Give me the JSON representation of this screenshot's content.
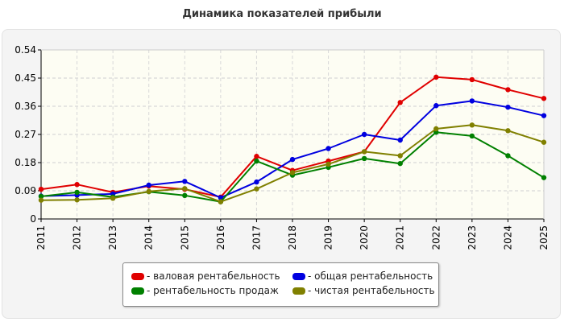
{
  "chart_data": {
    "type": "line",
    "title": "Динамика показателей прибыли",
    "xlabel": "",
    "ylabel": "",
    "x": [
      "2011",
      "2012",
      "2013",
      "2014",
      "2015",
      "2016",
      "2017",
      "2018",
      "2019",
      "2020",
      "2021",
      "2022",
      "2023",
      "2024",
      "2025"
    ],
    "yticks": [
      "0",
      "0.09",
      "0.18",
      "0.27",
      "0.36",
      "0.45",
      "0.54"
    ],
    "ylim": [
      0,
      0.54
    ],
    "grid": true,
    "legend_position": "bottom",
    "series": [
      {
        "name": "- валовая рентабельность",
        "color": "#e00000",
        "values": [
          0.095,
          0.11,
          0.085,
          0.105,
          0.095,
          0.07,
          0.2,
          0.155,
          0.185,
          0.215,
          0.372,
          0.453,
          0.445,
          0.413,
          0.385
        ]
      },
      {
        "name": "- общая рентабельность",
        "color": "#0000e0",
        "values": [
          0.073,
          0.076,
          0.08,
          0.108,
          0.12,
          0.068,
          0.118,
          0.19,
          0.225,
          0.27,
          0.252,
          0.362,
          0.377,
          0.357,
          0.33
        ]
      },
      {
        "name": "- рентабельность продаж",
        "color": "#008000",
        "values": [
          0.072,
          0.085,
          0.07,
          0.087,
          0.075,
          0.055,
          0.185,
          0.14,
          0.165,
          0.193,
          0.177,
          0.277,
          0.265,
          0.202,
          0.132
        ]
      },
      {
        "name": "- чистая рентабельность",
        "color": "#808000",
        "values": [
          0.06,
          0.061,
          0.066,
          0.088,
          0.097,
          0.055,
          0.096,
          0.148,
          0.175,
          0.215,
          0.202,
          0.288,
          0.3,
          0.282,
          0.245
        ]
      }
    ]
  }
}
